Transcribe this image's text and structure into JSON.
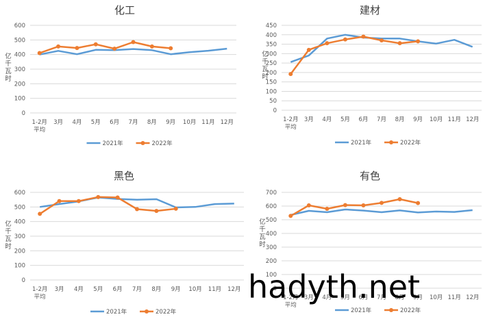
{
  "watermark": "hadyth.net",
  "legend_labels": [
    "2021年",
    "2022年"
  ],
  "ylabel_chars": [
    "亿",
    "千",
    "瓦",
    "时"
  ],
  "colors": {
    "s2021": "#5B9BD5",
    "s2022": "#ED7D31",
    "grid": "#D9D9D9",
    "text": "#595959",
    "title": "#404040"
  },
  "chart_data": [
    {
      "type": "line",
      "title": "化工",
      "x": [
        "1-2月平均",
        "3月",
        "4月",
        "5月",
        "6月",
        "7月",
        "8月",
        "9月",
        "10月",
        "11月",
        "12月"
      ],
      "ylabel": "亿千瓦时",
      "ylim": [
        0,
        600
      ],
      "yticks": [
        0,
        100,
        200,
        300,
        400,
        500,
        600
      ],
      "grid": true,
      "legend": "bottom",
      "series": [
        {
          "name": "2021年",
          "values": [
            400,
            425,
            402,
            432,
            430,
            438,
            430,
            402,
            416,
            426,
            440
          ]
        },
        {
          "name": "2022年",
          "values": [
            410,
            455,
            445,
            470,
            440,
            485,
            455,
            443,
            null,
            null,
            null
          ]
        }
      ]
    },
    {
      "type": "line",
      "title": "建材",
      "x": [
        "1-2月平均",
        "3月",
        "4月",
        "5月",
        "6月",
        "7月",
        "8月",
        "9月",
        "10月",
        "11月",
        "12月"
      ],
      "ylabel": "亿千瓦时",
      "ylim": [
        0,
        450
      ],
      "yticks": [
        0,
        50,
        100,
        150,
        200,
        250,
        300,
        350,
        400,
        450
      ],
      "grid": true,
      "legend": "bottom",
      "series": [
        {
          "name": "2021年",
          "values": [
            255,
            290,
            380,
            400,
            385,
            380,
            380,
            365,
            353,
            373,
            336
          ]
        },
        {
          "name": "2022年",
          "values": [
            192,
            320,
            355,
            375,
            390,
            370,
            355,
            365,
            null,
            null,
            null
          ]
        }
      ]
    },
    {
      "type": "line",
      "title": "黑色",
      "x": [
        "1-2月平均",
        "3月",
        "4月",
        "5月",
        "6月",
        "7月",
        "8月",
        "9月",
        "10月",
        "11月",
        "12月"
      ],
      "ylabel": "亿千瓦时",
      "ylim": [
        0,
        600
      ],
      "yticks": [
        0,
        100,
        200,
        300,
        400,
        500,
        600
      ],
      "grid": true,
      "legend": "bottom",
      "series": [
        {
          "name": "2021年",
          "values": [
            500,
            520,
            538,
            565,
            555,
            550,
            553,
            497,
            500,
            520,
            523
          ]
        },
        {
          "name": "2022年",
          "values": [
            453,
            540,
            540,
            568,
            565,
            485,
            473,
            488,
            null,
            null,
            null
          ]
        }
      ]
    },
    {
      "type": "line",
      "title": "有色",
      "x": [
        "1-2月平均",
        "3月",
        "4月",
        "5月",
        "6月",
        "7月",
        "8月",
        "9月",
        "10月",
        "11月",
        "12月"
      ],
      "ylabel": "亿千瓦时",
      "ylim": [
        0,
        700
      ],
      "yticks": [
        0,
        100,
        200,
        300,
        400,
        500,
        600,
        700
      ],
      "grid": true,
      "legend": "bottom",
      "series": [
        {
          "name": "2021年",
          "values": [
            535,
            565,
            555,
            575,
            567,
            555,
            568,
            553,
            560,
            557,
            570
          ]
        },
        {
          "name": "2022年",
          "values": [
            528,
            605,
            580,
            607,
            605,
            623,
            650,
            622,
            null,
            null,
            null
          ]
        }
      ]
    }
  ]
}
